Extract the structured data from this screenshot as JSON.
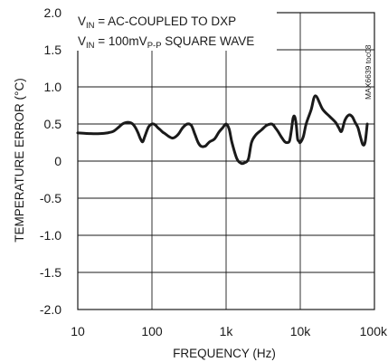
{
  "chart_data": {
    "type": "line",
    "ylabel": "TEMPERATURE ERROR (°C)",
    "xlabel": "FREQUENCY (Hz)",
    "x_scale": "log",
    "xlim": [
      10,
      100000
    ],
    "ylim": [
      -2.0,
      2.0
    ],
    "grid": true,
    "x_tick_values": [
      10,
      100,
      1000,
      10000,
      100000
    ],
    "x_tick_labels": [
      "10",
      "100",
      "1k",
      "10k",
      "100k"
    ],
    "y_tick_values": [
      2.0,
      1.5,
      1.0,
      0.5,
      0,
      -0.5,
      -1.0,
      -1.5,
      -2.0
    ],
    "y_tick_labels": [
      "2.0",
      "1.5",
      "1.0",
      "0.5",
      "0",
      "-0.5",
      "-1.0",
      "-1.5",
      "-2.0"
    ],
    "annotations": [
      {
        "main": "V",
        "sub": "IN",
        "rest": " = AC-COUPLED TO DXP"
      },
      {
        "main": "V",
        "sub": "IN",
        "rest": " = 100mV",
        "sub2": "P-P",
        "rest2": " SQUARE WAVE"
      }
    ],
    "figure_code": "MAX6639 toc08",
    "series": [
      {
        "x": [
          10,
          15,
          20,
          25,
          30,
          35,
          40,
          45,
          50,
          55,
          60,
          65,
          70,
          75,
          80,
          90,
          100,
          110,
          120,
          130,
          140,
          150,
          170,
          190,
          210,
          230,
          260,
          300,
          340,
          380,
          420,
          460,
          520,
          560,
          600,
          700,
          800,
          900,
          1000,
          1100,
          1200,
          1400,
          1600,
          1800,
          2000,
          2200,
          2500,
          3000,
          3500,
          4000,
          4300,
          4600,
          5000,
          5600,
          6200,
          6800,
          7200,
          7600,
          8000,
          8400,
          8800,
          9200,
          9600,
          10000,
          11000,
          12000,
          14000,
          16000,
          20000,
          25000,
          30000,
          33000,
          36000,
          40000,
          45000,
          50000,
          55000,
          60000,
          65000,
          70000,
          75000,
          80000
        ],
        "y": [
          0.38,
          0.37,
          0.37,
          0.38,
          0.4,
          0.45,
          0.5,
          0.52,
          0.52,
          0.5,
          0.45,
          0.38,
          0.3,
          0.26,
          0.33,
          0.46,
          0.5,
          0.49,
          0.45,
          0.42,
          0.39,
          0.37,
          0.33,
          0.31,
          0.33,
          0.37,
          0.45,
          0.5,
          0.48,
          0.36,
          0.25,
          0.2,
          0.2,
          0.23,
          0.26,
          0.3,
          0.39,
          0.45,
          0.5,
          0.43,
          0.25,
          0.03,
          -0.03,
          -0.02,
          0.03,
          0.25,
          0.35,
          0.42,
          0.48,
          0.5,
          0.49,
          0.45,
          0.4,
          0.32,
          0.26,
          0.25,
          0.28,
          0.42,
          0.58,
          0.6,
          0.5,
          0.3,
          0.27,
          0.25,
          0.33,
          0.5,
          0.69,
          0.88,
          0.7,
          0.6,
          0.52,
          0.45,
          0.4,
          0.55,
          0.62,
          0.6,
          0.52,
          0.45,
          0.32,
          0.22,
          0.26,
          0.5
        ]
      }
    ]
  }
}
